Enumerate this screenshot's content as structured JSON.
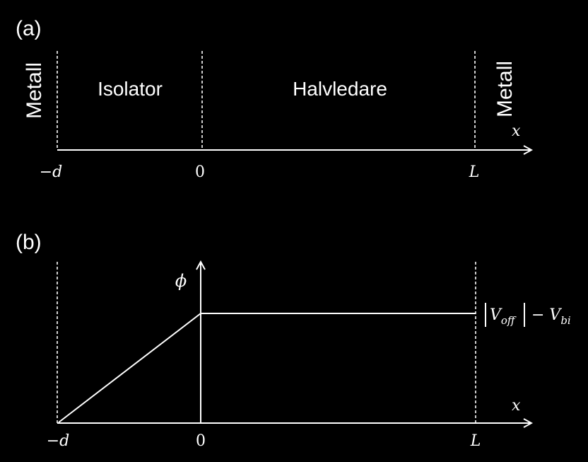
{
  "panel_a": {
    "label": "(a)",
    "left_region": "Metall",
    "insulator": "Isolator",
    "semiconductor": "Halvledare",
    "right_region": "Metall",
    "axis_label": "x",
    "ticks": {
      "neg_d": "−d",
      "zero": "0",
      "L": "L"
    }
  },
  "panel_b": {
    "label": "(b)",
    "y_label": "ϕ",
    "axis_label": "x",
    "plateau_label": {
      "v_off": "V",
      "off_sub": "off",
      "minus": "− V",
      "bi_sub": "bi"
    },
    "ticks": {
      "neg_d": "−d",
      "zero": "0",
      "L": "L"
    }
  },
  "colors": {
    "background": "#000000",
    "foreground": "#ffffff"
  }
}
